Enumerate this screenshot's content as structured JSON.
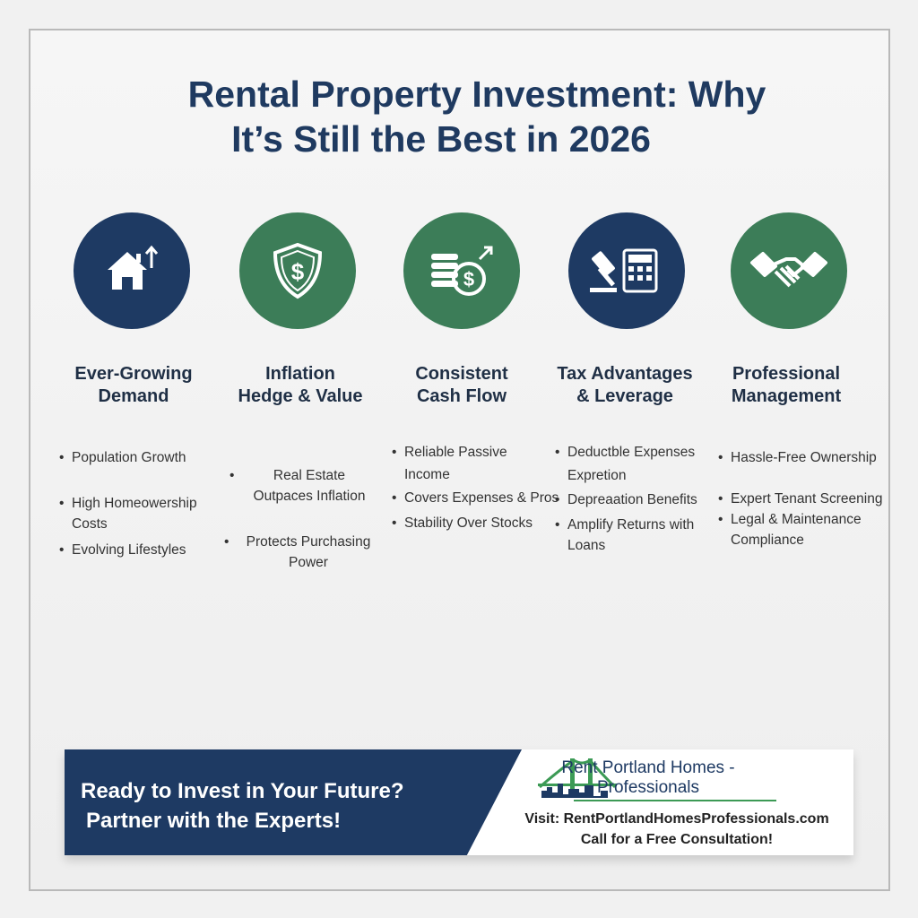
{
  "title": {
    "line1": "Rental Property Investment: Why",
    "line2": "It’s Still the Best in 2026"
  },
  "colors": {
    "navy": "#1e3a63",
    "green": "#3c7d58"
  },
  "columns": [
    {
      "icon": "house-arrow-up-icon",
      "color": "navy",
      "heading1": "Ever-Growing",
      "heading2": "Demand",
      "bullets": [
        "Population Growth",
        "High Homeowership Costs",
        "Evolving Lifestyles"
      ]
    },
    {
      "icon": "shield-dollar-icon",
      "color": "green",
      "heading1": "Inflation",
      "heading2": "Hedge & Value",
      "bullets": [
        "Real Estate Outpaces Inflation",
        "Protects Purchasing Power"
      ]
    },
    {
      "icon": "coins-dollar-icon",
      "color": "green",
      "heading1": "Consistent",
      "heading2": "Cash Flow",
      "bullets": [
        "Reliable Passive Income",
        "Covers Expenses & Pros",
        "Stability Over Stocks"
      ]
    },
    {
      "icon": "gavel-calculator-icon",
      "color": "navy",
      "heading1": "Tax Advantages",
      "heading2": "& Leverage",
      "bullets": [
        "Deductble Expenses Expretion",
        "Depreaation Benefits",
        "Amplify Returns with Loans"
      ]
    },
    {
      "icon": "handshake-icon",
      "color": "green",
      "heading1": "Professional",
      "heading2": "Management",
      "bullets": [
        "Hassle-Free Ownership",
        "Expert Tenant Screening",
        "Legal & Maintenance Compliance"
      ]
    }
  ],
  "banner": {
    "cta1": "Ready to Invest in Your Future?",
    "cta2": "Partner with the Experts!",
    "brand1": "Rent Portland Homes -",
    "brand2": "Professionals",
    "visit": "Visit: RentPortlandHomesProfessionals.com",
    "call": "Call for a Free Consultation!"
  }
}
